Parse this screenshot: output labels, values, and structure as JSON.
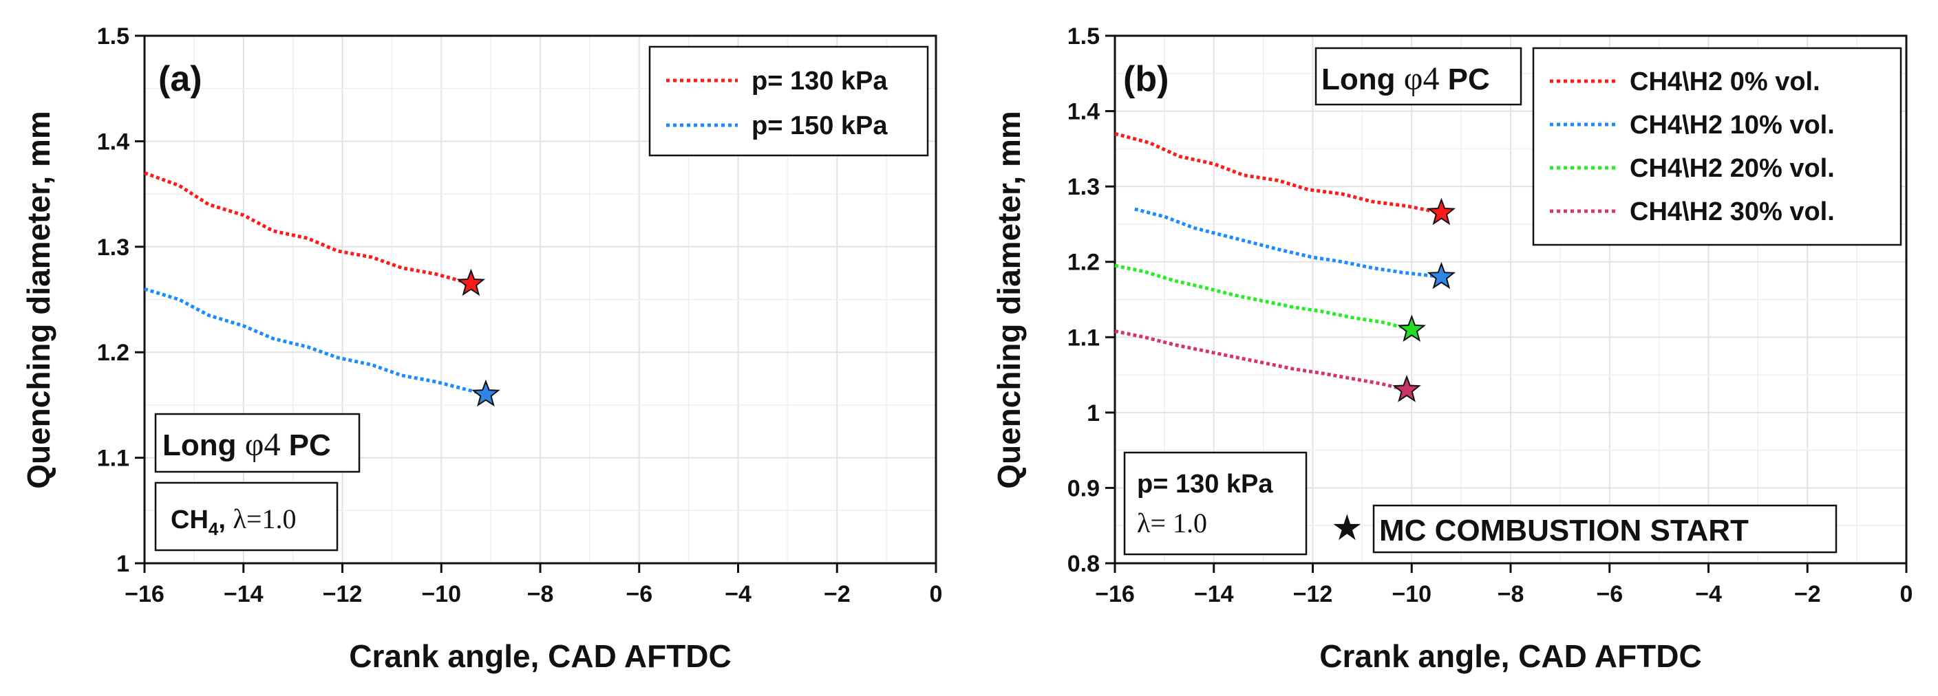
{
  "chart_data": [
    {
      "type": "line",
      "panel_label": "(a)",
      "xlabel": "Crank angle, CAD AFTDC",
      "ylabel": "Quenching diameter, mm",
      "xlim": [
        -16,
        0
      ],
      "ylim": [
        1.0,
        1.5
      ],
      "x_ticks": [
        "−16",
        "−14",
        "−12",
        "−10",
        "−8",
        "−6",
        "−4",
        "−2",
        "0"
      ],
      "y_ticks": [
        "1",
        "1.1",
        "1.2",
        "1.3",
        "1.4",
        "1.5"
      ],
      "grid": true,
      "legend_position": "top-right",
      "series": [
        {
          "name": "p= 130 kPa",
          "color": "#ff1a1a",
          "marker_color": "#ff1a1a",
          "x": [
            -16,
            -15.3,
            -14.7,
            -14.0,
            -13.4,
            -12.7,
            -12.1,
            -11.4,
            -10.8,
            -10.1,
            -9.4
          ],
          "y": [
            1.37,
            1.358,
            1.34,
            1.33,
            1.315,
            1.308,
            1.296,
            1.29,
            1.28,
            1.274,
            1.265
          ]
        },
        {
          "name": "p= 150 kPa",
          "color": "#1a8cff",
          "marker_color": "#2f86e8",
          "x": [
            -16,
            -15.3,
            -14.7,
            -14.0,
            -13.4,
            -12.7,
            -12.1,
            -11.4,
            -10.8,
            -10.1,
            -9.1
          ],
          "y": [
            1.26,
            1.25,
            1.235,
            1.225,
            1.213,
            1.205,
            1.195,
            1.188,
            1.178,
            1.172,
            1.16
          ]
        }
      ],
      "annotations": {
        "name_box": {
          "prefix": "Long ",
          "symbol": "φ4",
          "suffix": " PC"
        },
        "cond_box": {
          "fuel": "CH",
          "fuel_sub": "4",
          "sep": ", ",
          "lambda": "λ=1.0"
        }
      }
    },
    {
      "type": "line",
      "panel_label": "(b)",
      "xlabel": "Crank angle, CAD AFTDC",
      "ylabel": "Quenching diameter, mm",
      "xlim": [
        -16,
        0
      ],
      "ylim": [
        0.8,
        1.5
      ],
      "x_ticks": [
        "−16",
        "−14",
        "−12",
        "−10",
        "−8",
        "−6",
        "−4",
        "−2",
        "0"
      ],
      "y_ticks": [
        "0.8",
        "0.9",
        "1",
        "1.1",
        "1.2",
        "1.3",
        "1.4",
        "1.5"
      ],
      "grid": true,
      "legend_position": "top-right",
      "series": [
        {
          "name": "CH4\\H2 0% vol.",
          "color": "#ff1a1a",
          "marker_color": "#ff1a1a",
          "x": [
            -16,
            -15.3,
            -14.7,
            -14.0,
            -13.4,
            -12.7,
            -12.1,
            -11.4,
            -10.8,
            -10.1,
            -9.4
          ],
          "y": [
            1.37,
            1.358,
            1.34,
            1.33,
            1.315,
            1.308,
            1.296,
            1.29,
            1.28,
            1.274,
            1.265
          ]
        },
        {
          "name": "CH4\\H2 10% vol.",
          "color": "#1a8cff",
          "marker_color": "#2f86e8",
          "x": [
            -15.6,
            -15.0,
            -14.4,
            -13.8,
            -13.2,
            -12.6,
            -12.0,
            -11.4,
            -10.8,
            -10.2,
            -9.4
          ],
          "y": [
            1.27,
            1.26,
            1.245,
            1.235,
            1.225,
            1.215,
            1.206,
            1.2,
            1.192,
            1.186,
            1.18
          ]
        },
        {
          "name": "CH4\\H2 20% vol.",
          "color": "#22ee22",
          "marker_color": "#22dd22",
          "x": [
            -16,
            -15.4,
            -14.8,
            -14.2,
            -13.6,
            -13.0,
            -12.4,
            -11.8,
            -11.2,
            -10.6,
            -10.0
          ],
          "y": [
            1.195,
            1.187,
            1.175,
            1.166,
            1.156,
            1.148,
            1.14,
            1.134,
            1.126,
            1.12,
            1.11
          ]
        },
        {
          "name": "CH4\\H2 30% vol.",
          "color": "#d6336c",
          "marker_color": "#cc3366",
          "x": [
            -16,
            -15.4,
            -14.8,
            -14.2,
            -13.6,
            -13.0,
            -12.4,
            -11.8,
            -11.2,
            -10.6,
            -10.1
          ],
          "y": [
            1.108,
            1.1,
            1.09,
            1.082,
            1.074,
            1.066,
            1.058,
            1.052,
            1.045,
            1.038,
            1.03
          ]
        }
      ],
      "annotations": {
        "name_box": {
          "prefix": "Long ",
          "symbol": "φ4",
          "suffix": " PC"
        },
        "cond_box": {
          "pressure": "p= 130 kPa",
          "lambda": "λ= 1.0"
        },
        "marker_note": {
          "star": "★",
          "text": "MC COMBUSTION START"
        }
      }
    }
  ]
}
